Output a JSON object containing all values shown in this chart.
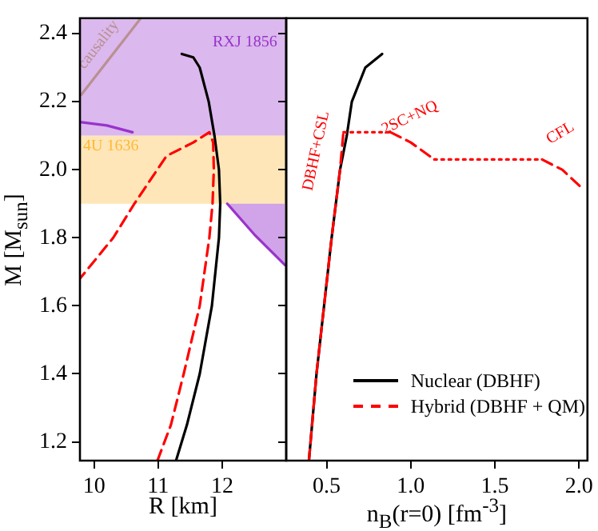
{
  "chart_data": [
    {
      "type": "line",
      "xlabel": "R [km]",
      "ylabel": "M [M$_{sun}$]",
      "xlim": [
        9.78,
        13.0
      ],
      "ylim": [
        1.145,
        2.445
      ],
      "xticks": [
        10,
        11,
        12
      ],
      "yticks": [
        1.2,
        1.4,
        1.6,
        1.8,
        {
          "value": 2,
          "label": "2.0"
        },
        2.2,
        2.4
      ],
      "grid": false,
      "marker": "none",
      "series": [
        {
          "color": "#b89090",
          "x": [
            9.8,
            10.73
          ],
          "values": [
            2.22,
            2.445
          ],
          "line_style": "solid"
        },
        {
          "color": "#9933cc",
          "x": [
            9.78,
            10.2,
            10.6
          ],
          "values": [
            2.14,
            2.13,
            2.11
          ],
          "line_style": "solid"
        },
        {
          "color": "#9933cc",
          "x": [
            12.08,
            12.5,
            12.98
          ],
          "values": [
            1.9,
            1.81,
            1.72
          ],
          "lower": [
            1.9,
            1.81,
            1.72
          ],
          "upper": [
            1.9,
            1.9,
            1.9
          ],
          "line_style": "solid"
        },
        {
          "color": "#000000",
          "x": [
            11.28,
            11.45,
            11.65,
            11.84,
            11.95,
            11.97,
            11.95,
            11.88,
            11.79,
            11.65,
            11.55,
            11.37
          ],
          "values": [
            1.145,
            1.25,
            1.4,
            1.6,
            1.8,
            1.9,
            2.0,
            2.1,
            2.2,
            2.3,
            2.33,
            2.34
          ],
          "line_style": "solid"
        },
        {
          "color": "#ff0000",
          "x": [
            10.99,
            11.2,
            11.4,
            11.65,
            11.8,
            11.85,
            11.87,
            11.86,
            11.8,
            11.55,
            11.13,
            10.63,
            10.3,
            9.78
          ],
          "values": [
            1.145,
            1.25,
            1.4,
            1.6,
            1.8,
            1.9,
            2.0,
            2.08,
            2.11,
            2.08,
            2.04,
            1.9,
            1.8,
            1.68
          ],
          "line_style": "dashed"
        }
      ],
      "bands": [
        {
          "axis": "y",
          "from": 1.9,
          "to": 2.1,
          "color": "#ffb833"
        },
        {
          "axis": "y",
          "from": 2.1,
          "to": 2.445,
          "color": "#9933cc"
        }
      ],
      "annotations": [
        "causality",
        "RXJ 1856",
        "4U 1636"
      ]
    },
    {
      "type": "line",
      "xlabel": "n$_{B}$(r=0) [fm$^{-3}$]",
      "xlim": [
        0.26,
        2.05
      ],
      "ylim": [
        1.145,
        2.445
      ],
      "xticks": [
        0.5,
        {
          "value": 1,
          "label": "1.0"
        },
        1.5,
        {
          "value": 2,
          "label": "2.0"
        }
      ],
      "yticks": [
        1.2,
        1.4,
        1.6,
        1.8,
        2,
        2.2,
        2.4
      ],
      "tick_labels": "x",
      "grid": false,
      "marker": "none",
      "legend": "bottom right",
      "series": [
        {
          "name": "Nuclear (DBHF)",
          "color": "#000000",
          "x": [
            0.395,
            0.44,
            0.485,
            0.53,
            0.58,
            0.62,
            0.65,
            0.73,
            0.83
          ],
          "values": [
            1.145,
            1.4,
            1.6,
            1.8,
            2.0,
            2.1,
            2.2,
            2.3,
            2.34
          ],
          "line_style": "solid"
        },
        {
          "name": "Hybrid (DBHF + QM)",
          "color": "#ff0000",
          "x": [
            0.395,
            0.44,
            0.485,
            0.53,
            0.58,
            0.6
          ],
          "values": [
            1.145,
            1.4,
            1.6,
            1.8,
            2.0,
            2.11
          ],
          "line_style": "dashed"
        },
        {
          "color": "#ff0000",
          "x": [
            0.6,
            0.88
          ],
          "values": [
            2.11,
            2.11
          ],
          "line_style": "dotted"
        },
        {
          "color": "#ff0000",
          "x": [
            0.88,
            1.0,
            1.14
          ],
          "values": [
            2.11,
            2.08,
            2.03
          ],
          "line_style": "dashed"
        },
        {
          "color": "#ff0000",
          "x": [
            1.14,
            1.78
          ],
          "values": [
            2.03,
            2.03
          ],
          "line_style": "dotted"
        },
        {
          "color": "#ff0000",
          "x": [
            1.78,
            1.9,
            2.03
          ],
          "values": [
            2.03,
            2.0,
            1.94
          ],
          "line_style": "dashed"
        }
      ],
      "annotations": [
        "DBHF+CSL",
        "2SC+NQ",
        "CFL"
      ]
    }
  ]
}
